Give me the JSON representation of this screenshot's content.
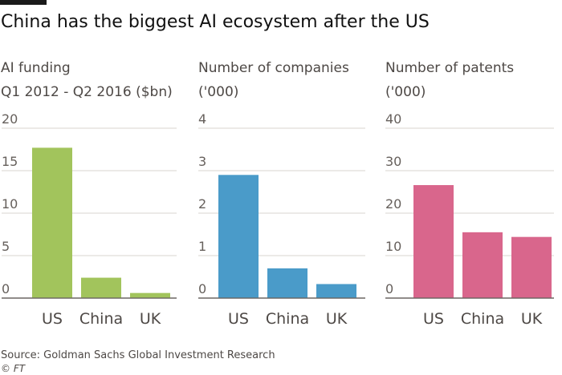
{
  "title": "China has the biggest AI ecosystem after the US",
  "source": "Source: Goldman Sachs Global Investment Research",
  "credit": "© FT",
  "chart_data": [
    {
      "type": "bar",
      "title_line1": "AI funding",
      "title_line2": "Q1 2012 - Q2 2016 ($bn)",
      "categories": [
        "US",
        "China",
        "UK"
      ],
      "values": [
        17.7,
        2.4,
        0.6
      ],
      "ylim": [
        0,
        20
      ],
      "yticks": [
        0,
        5,
        10,
        15,
        20
      ],
      "color": "#a2c45c"
    },
    {
      "type": "bar",
      "title_line1": "Number of companies",
      "title_line2": "('000)",
      "categories": [
        "US",
        "China",
        "UK"
      ],
      "values": [
        2.9,
        0.7,
        0.33
      ],
      "ylim": [
        0,
        4
      ],
      "yticks": [
        0,
        1,
        2,
        3,
        4
      ],
      "color": "#4a9bc9"
    },
    {
      "type": "bar",
      "title_line1": "Number of patents",
      "title_line2": "('000)",
      "categories": [
        "US",
        "China",
        "UK"
      ],
      "values": [
        26.6,
        15.5,
        14.4
      ],
      "ylim": [
        0,
        40
      ],
      "yticks": [
        0,
        10,
        20,
        30,
        40
      ],
      "color": "#d9668c"
    }
  ]
}
